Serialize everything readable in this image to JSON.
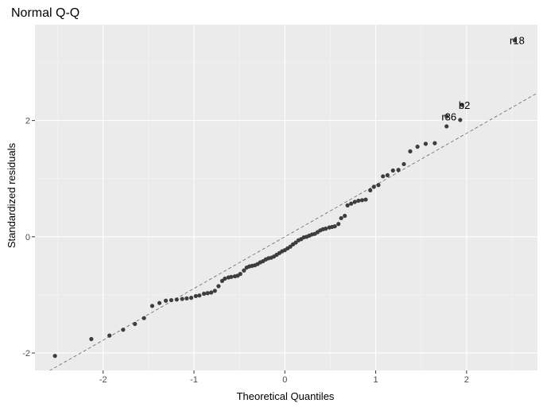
{
  "chart_data": {
    "type": "scatter",
    "title": "Normal Q-Q",
    "xlabel": "Theoretical Quantiles",
    "ylabel": "Standardized residuals",
    "xlim": [
      -2.75,
      2.78
    ],
    "ylim": [
      -2.3,
      3.65
    ],
    "xticks": [
      -2,
      -1,
      0,
      1,
      2
    ],
    "yticks": [
      -2,
      0,
      2
    ],
    "grid": true,
    "reference_line": {
      "intercept": 0.0,
      "slope": 0.89,
      "style": "dashed"
    },
    "points": [
      {
        "x": -2.53,
        "y": -2.05
      },
      {
        "x": -2.13,
        "y": -1.76
      },
      {
        "x": -1.93,
        "y": -1.7
      },
      {
        "x": -1.78,
        "y": -1.6
      },
      {
        "x": -1.65,
        "y": -1.5
      },
      {
        "x": -1.55,
        "y": -1.4
      },
      {
        "x": -1.46,
        "y": -1.19
      },
      {
        "x": -1.38,
        "y": -1.14
      },
      {
        "x": -1.31,
        "y": -1.1
      },
      {
        "x": -1.25,
        "y": -1.09
      },
      {
        "x": -1.19,
        "y": -1.08
      },
      {
        "x": -1.13,
        "y": -1.07
      },
      {
        "x": -1.08,
        "y": -1.06
      },
      {
        "x": -1.03,
        "y": -1.05
      },
      {
        "x": -0.98,
        "y": -1.02
      },
      {
        "x": -0.94,
        "y": -1.01
      },
      {
        "x": -0.89,
        "y": -0.98
      },
      {
        "x": -0.85,
        "y": -0.97
      },
      {
        "x": -0.81,
        "y": -0.96
      },
      {
        "x": -0.77,
        "y": -0.93
      },
      {
        "x": -0.73,
        "y": -0.85
      },
      {
        "x": -0.69,
        "y": -0.76
      },
      {
        "x": -0.66,
        "y": -0.72
      },
      {
        "x": -0.62,
        "y": -0.7
      },
      {
        "x": -0.59,
        "y": -0.69
      },
      {
        "x": -0.55,
        "y": -0.68
      },
      {
        "x": -0.52,
        "y": -0.67
      },
      {
        "x": -0.49,
        "y": -0.64
      },
      {
        "x": -0.45,
        "y": -0.58
      },
      {
        "x": -0.42,
        "y": -0.53
      },
      {
        "x": -0.39,
        "y": -0.51
      },
      {
        "x": -0.36,
        "y": -0.5
      },
      {
        "x": -0.33,
        "y": -0.49
      },
      {
        "x": -0.3,
        "y": -0.47
      },
      {
        "x": -0.27,
        "y": -0.44
      },
      {
        "x": -0.24,
        "y": -0.42
      },
      {
        "x": -0.21,
        "y": -0.39
      },
      {
        "x": -0.18,
        "y": -0.37
      },
      {
        "x": -0.15,
        "y": -0.36
      },
      {
        "x": -0.12,
        "y": -0.34
      },
      {
        "x": -0.09,
        "y": -0.31
      },
      {
        "x": -0.06,
        "y": -0.28
      },
      {
        "x": -0.03,
        "y": -0.25
      },
      {
        "x": 0.0,
        "y": -0.23
      },
      {
        "x": 0.03,
        "y": -0.2
      },
      {
        "x": 0.06,
        "y": -0.17
      },
      {
        "x": 0.09,
        "y": -0.13
      },
      {
        "x": 0.12,
        "y": -0.1
      },
      {
        "x": 0.15,
        "y": -0.06
      },
      {
        "x": 0.18,
        "y": -0.04
      },
      {
        "x": 0.21,
        "y": -0.01
      },
      {
        "x": 0.24,
        "y": 0.0
      },
      {
        "x": 0.27,
        "y": 0.02
      },
      {
        "x": 0.3,
        "y": 0.04
      },
      {
        "x": 0.33,
        "y": 0.05
      },
      {
        "x": 0.36,
        "y": 0.08
      },
      {
        "x": 0.39,
        "y": 0.11
      },
      {
        "x": 0.42,
        "y": 0.13
      },
      {
        "x": 0.45,
        "y": 0.14
      },
      {
        "x": 0.49,
        "y": 0.16
      },
      {
        "x": 0.52,
        "y": 0.17
      },
      {
        "x": 0.55,
        "y": 0.18
      },
      {
        "x": 0.59,
        "y": 0.22
      },
      {
        "x": 0.62,
        "y": 0.32
      },
      {
        "x": 0.66,
        "y": 0.36
      },
      {
        "x": 0.69,
        "y": 0.54
      },
      {
        "x": 0.73,
        "y": 0.57
      },
      {
        "x": 0.77,
        "y": 0.6
      },
      {
        "x": 0.81,
        "y": 0.62
      },
      {
        "x": 0.85,
        "y": 0.63
      },
      {
        "x": 0.89,
        "y": 0.64
      },
      {
        "x": 0.94,
        "y": 0.8
      },
      {
        "x": 0.98,
        "y": 0.86
      },
      {
        "x": 1.03,
        "y": 0.89
      },
      {
        "x": 1.08,
        "y": 1.04
      },
      {
        "x": 1.13,
        "y": 1.06
      },
      {
        "x": 1.19,
        "y": 1.14
      },
      {
        "x": 1.25,
        "y": 1.15
      },
      {
        "x": 1.31,
        "y": 1.25
      },
      {
        "x": 1.38,
        "y": 1.47
      },
      {
        "x": 1.46,
        "y": 1.55
      },
      {
        "x": 1.55,
        "y": 1.6
      },
      {
        "x": 1.65,
        "y": 1.61
      },
      {
        "x": 1.78,
        "y": 1.9
      },
      {
        "x": 1.93,
        "y": 2.01
      },
      {
        "x": 1.78,
        "y": 2.07,
        "label": "r36"
      },
      {
        "x": 1.95,
        "y": 2.27,
        "label": "b2"
      },
      {
        "x": 2.53,
        "y": 3.38,
        "label": "r18"
      }
    ]
  }
}
